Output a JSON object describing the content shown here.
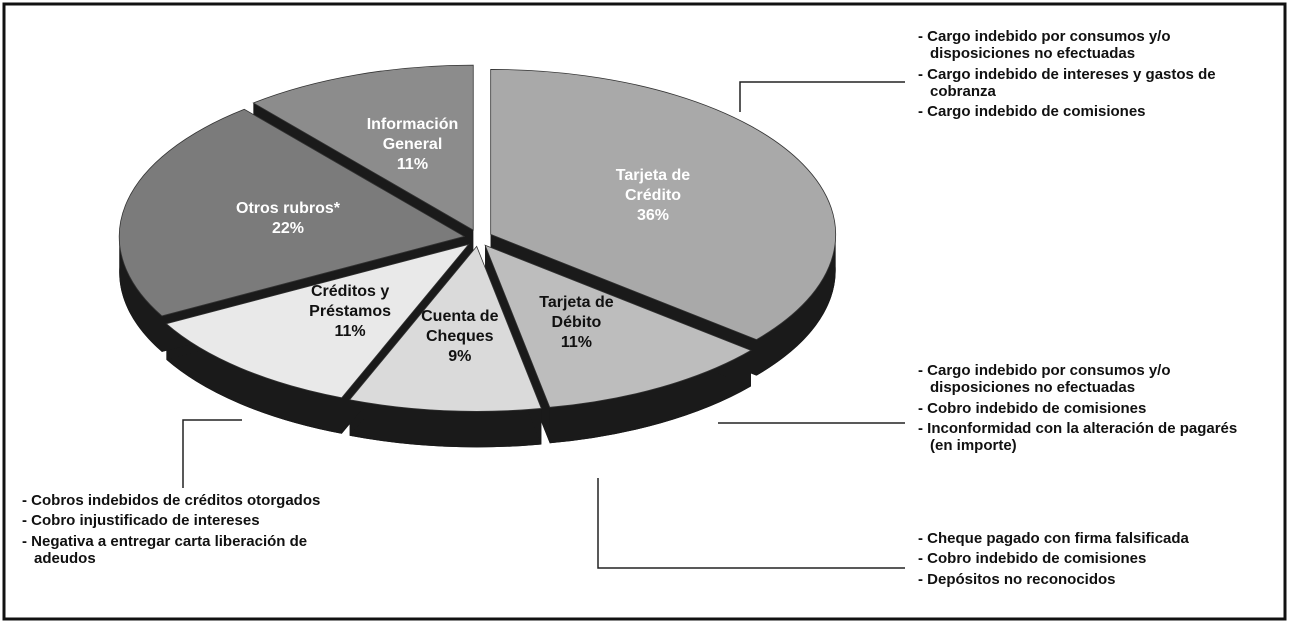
{
  "chart_data": {
    "type": "pie",
    "categories": [
      "Tarjeta de Crédito",
      "Tarjeta de Débito",
      "Cuenta de Cheques",
      "Créditos y Préstamos",
      "Otros rubros*",
      "Información General"
    ],
    "values": [
      36,
      11,
      9,
      11,
      22,
      11
    ],
    "value_labels": [
      "36%",
      "11%",
      "9%",
      "11%",
      "22%",
      "11%"
    ],
    "colors": [
      "#a9a9a9",
      "#bdbdbd",
      "#dadada",
      "#e9e9e9",
      "#7b7b7b",
      "#8c8c8c"
    ],
    "label_colors": [
      "#ffffff",
      "#111111",
      "#111111",
      "#111111",
      "#ffffff",
      "#ffffff"
    ],
    "annotations": [
      {
        "items": [
          "- Cargo indebido por consumos y/o disposiciones no efectuadas",
          "- Cargo indebido de intereses y gastos de cobranza",
          "- Cargo indebido de comisiones"
        ]
      },
      {
        "items": [
          "- Cargo indebido por consumos y/o disposiciones no efectuadas",
          "- Cobro indebido de comisiones",
          "- Inconformidad con la alteración de pagarés (en importe)"
        ]
      },
      {
        "items": [
          "- Cheque pagado con firma falsificada",
          "- Cobro indebido de comisiones",
          "- Depósitos no reconocidos"
        ]
      },
      {
        "items": [
          "- Cobros indebidos de créditos otorgados",
          "- Cobro injustificado de intereses",
          "- Negativa a entregar carta liberación de adeudos"
        ]
      }
    ]
  }
}
